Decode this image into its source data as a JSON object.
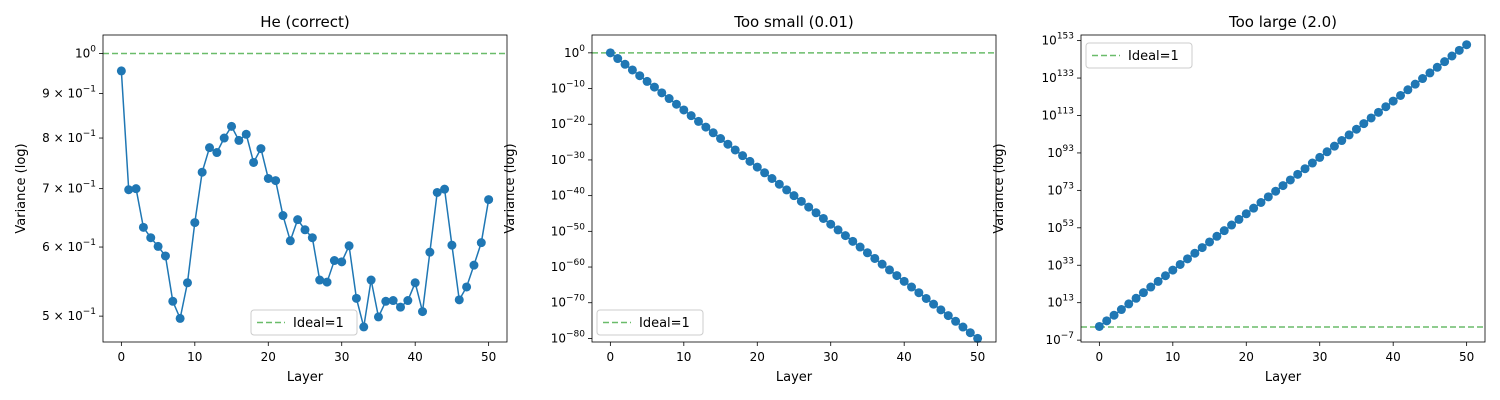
{
  "colors": {
    "series": "#1f77b4",
    "ideal": "#2ca02c"
  },
  "chart_data": [
    {
      "type": "line",
      "title": "He (correct)",
      "xlabel": "Layer",
      "ylabel": "Variance (log)",
      "yscale": "log",
      "xlim": [
        -2.5,
        52.5
      ],
      "ylim": [
        0.467,
        1.05
      ],
      "xticks": [
        0,
        10,
        20,
        30,
        40,
        50
      ],
      "yticks": [
        {
          "value": 0.5,
          "mant": "5 × 10",
          "exp": "−1"
        },
        {
          "value": 0.6,
          "mant": "6 × 10",
          "exp": "−1"
        },
        {
          "value": 0.7,
          "mant": "7 × 10",
          "exp": "−1"
        },
        {
          "value": 0.8,
          "mant": "8 × 10",
          "exp": "−1"
        },
        {
          "value": 0.9,
          "mant": "9 × 10",
          "exp": "−1"
        },
        {
          "value": 1.0,
          "mant": "10",
          "exp": "0"
        }
      ],
      "series": [
        {
          "x": [
            0,
            1,
            2,
            3,
            4,
            5,
            6,
            7,
            8,
            9,
            10,
            11,
            12,
            13,
            14,
            15,
            16,
            17,
            18,
            19,
            20,
            21,
            22,
            23,
            24,
            25,
            26,
            27,
            28,
            29,
            30,
            31,
            32,
            33,
            34,
            35,
            36,
            37,
            38,
            39,
            40,
            41,
            42,
            43,
            44,
            45,
            46,
            47,
            48,
            49,
            50
          ],
          "values": [
            0.955,
            0.698,
            0.7,
            0.632,
            0.615,
            0.601,
            0.586,
            0.52,
            0.497,
            0.546,
            0.64,
            0.731,
            0.78,
            0.77,
            0.8,
            0.825,
            0.795,
            0.808,
            0.75,
            0.778,
            0.719,
            0.715,
            0.652,
            0.61,
            0.645,
            0.628,
            0.615,
            0.55,
            0.547,
            0.579,
            0.577,
            0.602,
            0.524,
            0.486,
            0.55,
            0.499,
            0.52,
            0.521,
            0.512,
            0.521,
            0.546,
            0.506,
            0.592,
            0.693,
            0.699,
            0.603,
            0.522,
            0.54,
            0.572,
            0.607,
            0.68
          ]
        }
      ],
      "ideal": {
        "y": 1,
        "label": "Ideal=1"
      },
      "legend": "lower-center"
    },
    {
      "type": "line",
      "title": "Too small (0.01)",
      "xlabel": "Layer",
      "ylabel": "Variance (log)",
      "yscale": "log",
      "xlim": [
        -2.5,
        52.5
      ],
      "ylim": [
        1e-81,
        100000.0
      ],
      "xticks": [
        0,
        10,
        20,
        30,
        40,
        50
      ],
      "yticks": [
        {
          "value": 1e-80,
          "mant": "10",
          "exp": "−80"
        },
        {
          "value": 1e-70,
          "mant": "10",
          "exp": "−70"
        },
        {
          "value": 1e-60,
          "mant": "10",
          "exp": "−60"
        },
        {
          "value": 1e-50,
          "mant": "10",
          "exp": "−50"
        },
        {
          "value": 1e-40,
          "mant": "10",
          "exp": "−40"
        },
        {
          "value": 1e-30,
          "mant": "10",
          "exp": "−30"
        },
        {
          "value": 1e-20,
          "mant": "10",
          "exp": "−20"
        },
        {
          "value": 1e-10,
          "mant": "10",
          "exp": "−10"
        },
        {
          "value": 1,
          "mant": "10",
          "exp": "0"
        }
      ],
      "series": [
        {
          "x_start": 0,
          "x_end": 50,
          "log10_start": 0,
          "log10_step": -1.6
        }
      ],
      "ideal": {
        "y": 1,
        "label": "Ideal=1"
      },
      "legend": "lower-left"
    },
    {
      "type": "line",
      "title": "Too large (2.0)",
      "xlabel": "Layer",
      "ylabel": "Variance (log)",
      "yscale": "log",
      "xlim": [
        -2.5,
        52.5
      ],
      "ylim": [
        1e-08,
        1e+156
      ],
      "xticks": [
        0,
        10,
        20,
        30,
        40,
        50
      ],
      "yticks": [
        {
          "value": 1e-07,
          "mant": "10",
          "exp": "−7"
        },
        {
          "value": 10000000000000.0,
          "mant": "10",
          "exp": "13"
        },
        {
          "value": 1e+33,
          "mant": "10",
          "exp": "33"
        },
        {
          "value": 1e+53,
          "mant": "10",
          "exp": "53"
        },
        {
          "value": 1e+73,
          "mant": "10",
          "exp": "73"
        },
        {
          "value": 1e+93,
          "mant": "10",
          "exp": "93"
        },
        {
          "value": 1e+113,
          "mant": "10",
          "exp": "113"
        },
        {
          "value": 1e+133,
          "mant": "10",
          "exp": "133"
        },
        {
          "value": 1e+153,
          "mant": "10",
          "exp": "153"
        }
      ],
      "series": [
        {
          "x_start": 0,
          "x_end": 50,
          "log10_start": 0.3,
          "log10_step": 3.01
        }
      ],
      "ideal": {
        "y": 1,
        "label": "Ideal=1"
      },
      "legend": "upper-left"
    }
  ]
}
